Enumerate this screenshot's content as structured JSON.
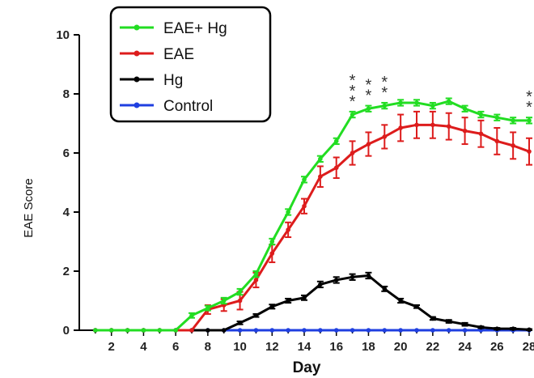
{
  "chart_data": {
    "type": "line",
    "xlabel": "Day",
    "ylabel": "EAE Score",
    "xlim": [
      0,
      28
    ],
    "ylim": [
      0,
      10
    ],
    "x_ticks": [
      2,
      4,
      6,
      8,
      10,
      12,
      14,
      16,
      18,
      20,
      22,
      24,
      26,
      28
    ],
    "y_ticks": [
      0,
      2,
      4,
      6,
      8,
      10
    ],
    "x": [
      1,
      2,
      3,
      4,
      5,
      6,
      7,
      8,
      9,
      10,
      11,
      12,
      13,
      14,
      15,
      16,
      17,
      18,
      19,
      20,
      21,
      22,
      23,
      24,
      25,
      26,
      27,
      28
    ],
    "legend_position": "top-left",
    "grid": false,
    "series": [
      {
        "name": "EAE+ Hg",
        "color": "#22dd22",
        "values": [
          0,
          0,
          0,
          0,
          0,
          0,
          0.5,
          0.75,
          1.0,
          1.3,
          1.9,
          3.0,
          4.0,
          5.1,
          5.8,
          6.4,
          7.3,
          7.5,
          7.6,
          7.7,
          7.7,
          7.6,
          7.75,
          7.5,
          7.3,
          7.2,
          7.1,
          7.1
        ],
        "errors": [
          0,
          0,
          0,
          0,
          0,
          0,
          0.08,
          0.08,
          0.1,
          0.1,
          0.1,
          0.1,
          0.1,
          0.1,
          0.1,
          0.1,
          0.1,
          0.1,
          0.1,
          0.1,
          0.1,
          0.1,
          0.1,
          0.1,
          0.1,
          0.1,
          0.1,
          0.1
        ]
      },
      {
        "name": "EAE",
        "color": "#dd1c1c",
        "values": [
          0,
          0,
          0,
          0,
          0,
          0,
          0,
          0.7,
          0.85,
          1.0,
          1.7,
          2.6,
          3.4,
          4.2,
          5.2,
          5.5,
          6.0,
          6.3,
          6.55,
          6.85,
          6.95,
          6.95,
          6.9,
          6.75,
          6.65,
          6.4,
          6.25,
          6.05
        ],
        "errors": [
          0,
          0,
          0,
          0,
          0,
          0,
          0,
          0.15,
          0.2,
          0.3,
          0.25,
          0.3,
          0.25,
          0.25,
          0.35,
          0.35,
          0.4,
          0.4,
          0.4,
          0.45,
          0.45,
          0.45,
          0.45,
          0.45,
          0.45,
          0.45,
          0.45,
          0.45
        ]
      },
      {
        "name": "Hg",
        "color": "#000000",
        "values": [
          0,
          0,
          0,
          0,
          0,
          0,
          0,
          0,
          0,
          0.25,
          0.5,
          0.8,
          1.0,
          1.1,
          1.55,
          1.7,
          1.8,
          1.85,
          1.4,
          1.0,
          0.8,
          0.4,
          0.3,
          0.2,
          0.1,
          0.05,
          0.05,
          0.02
        ],
        "errors": [
          0,
          0,
          0,
          0,
          0,
          0,
          0,
          0,
          0,
          0.05,
          0.05,
          0.07,
          0.07,
          0.08,
          0.1,
          0.1,
          0.1,
          0.1,
          0.08,
          0.07,
          0.05,
          0.05,
          0.05,
          0.05,
          0.03,
          0.03,
          0.03,
          0.02
        ]
      },
      {
        "name": "Control",
        "color": "#1f3fe0",
        "values": [
          0,
          0,
          0,
          0,
          0,
          0,
          0,
          0,
          0,
          0,
          0,
          0,
          0,
          0,
          0,
          0,
          0,
          0,
          0,
          0,
          0,
          0,
          0,
          0,
          0,
          0,
          0,
          0
        ],
        "errors": [
          0,
          0,
          0,
          0,
          0,
          0,
          0,
          0,
          0,
          0,
          0,
          0,
          0,
          0,
          0,
          0,
          0,
          0,
          0,
          0,
          0,
          0,
          0,
          0,
          0,
          0,
          0,
          0
        ]
      }
    ],
    "annotations": [
      {
        "text": "***",
        "x": 17,
        "y": 7.4
      },
      {
        "text": "**",
        "x": 18,
        "y": 7.6
      },
      {
        "text": "**",
        "x": 19,
        "y": 7.7
      },
      {
        "text": "**",
        "x": 28,
        "y": 7.2
      }
    ]
  }
}
